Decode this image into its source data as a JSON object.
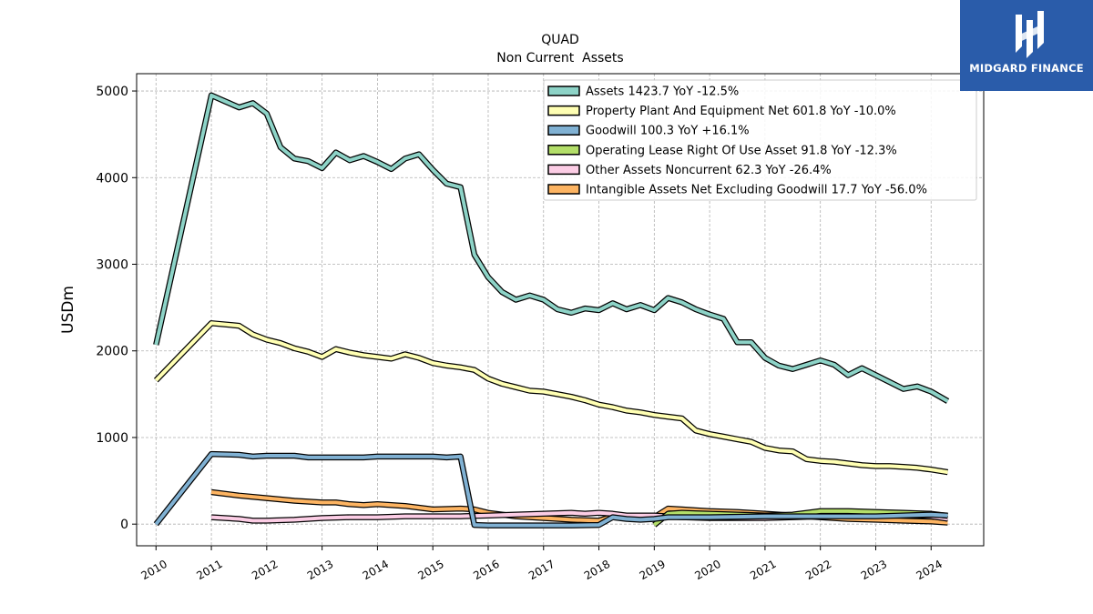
{
  "brand": {
    "name": "MIDGARD FINANCE",
    "color": "#2a5caa"
  },
  "chart_data": {
    "type": "line",
    "title": "QUAD",
    "subtitle": "Non Current  Assets",
    "xlabel": "",
    "ylabel": "USDm",
    "xlim": [
      2009.65,
      2024.95
    ],
    "ylim": [
      -250,
      5200
    ],
    "yticks": [
      0,
      1000,
      2000,
      3000,
      4000,
      5000
    ],
    "xticks": [
      2010,
      2011,
      2012,
      2013,
      2014,
      2015,
      2016,
      2017,
      2018,
      2019,
      2020,
      2021,
      2022,
      2023,
      2024
    ],
    "grid": true,
    "legend_position": "top-right",
    "series": [
      {
        "name": "Assets",
        "legend": "Assets  1423.7 YoY -12.5%",
        "color": "#8dd3c7",
        "points": [
          [
            2010.0,
            2070
          ],
          [
            2011.0,
            4950
          ],
          [
            2011.25,
            4880
          ],
          [
            2011.5,
            4810
          ],
          [
            2011.75,
            4860
          ],
          [
            2012.0,
            4740
          ],
          [
            2012.25,
            4350
          ],
          [
            2012.5,
            4220
          ],
          [
            2012.75,
            4190
          ],
          [
            2013.0,
            4110
          ],
          [
            2013.25,
            4290
          ],
          [
            2013.5,
            4200
          ],
          [
            2013.75,
            4250
          ],
          [
            2014.0,
            4180
          ],
          [
            2014.25,
            4100
          ],
          [
            2014.5,
            4220
          ],
          [
            2014.75,
            4270
          ],
          [
            2015.0,
            4090
          ],
          [
            2015.25,
            3930
          ],
          [
            2015.5,
            3890
          ],
          [
            2015.75,
            3110
          ],
          [
            2016.0,
            2850
          ],
          [
            2016.25,
            2680
          ],
          [
            2016.5,
            2590
          ],
          [
            2016.75,
            2640
          ],
          [
            2017.0,
            2590
          ],
          [
            2017.25,
            2480
          ],
          [
            2017.5,
            2440
          ],
          [
            2017.75,
            2490
          ],
          [
            2018.0,
            2470
          ],
          [
            2018.25,
            2550
          ],
          [
            2018.5,
            2480
          ],
          [
            2018.75,
            2530
          ],
          [
            2019.0,
            2470
          ],
          [
            2019.25,
            2610
          ],
          [
            2019.5,
            2560
          ],
          [
            2019.75,
            2480
          ],
          [
            2020.0,
            2420
          ],
          [
            2020.25,
            2370
          ],
          [
            2020.5,
            2100
          ],
          [
            2020.75,
            2100
          ],
          [
            2021.0,
            1920
          ],
          [
            2021.25,
            1830
          ],
          [
            2021.5,
            1790
          ],
          [
            2021.75,
            1840
          ],
          [
            2022.0,
            1890
          ],
          [
            2022.25,
            1840
          ],
          [
            2022.5,
            1720
          ],
          [
            2022.75,
            1800
          ],
          [
            2023.0,
            1720
          ],
          [
            2023.25,
            1640
          ],
          [
            2023.5,
            1560
          ],
          [
            2023.75,
            1590
          ],
          [
            2024.0,
            1530
          ],
          [
            2024.3,
            1420
          ]
        ]
      },
      {
        "name": "Property Plant And Equipment Net",
        "legend": "Property Plant And Equipment Net  601.8 YoY -10.0%",
        "color": "#ffffb3",
        "points": [
          [
            2010.0,
            1660
          ],
          [
            2011.0,
            2320
          ],
          [
            2011.5,
            2290
          ],
          [
            2011.75,
            2190
          ],
          [
            2012.0,
            2130
          ],
          [
            2012.25,
            2090
          ],
          [
            2012.5,
            2030
          ],
          [
            2012.75,
            1990
          ],
          [
            2013.0,
            1930
          ],
          [
            2013.25,
            2020
          ],
          [
            2013.5,
            1980
          ],
          [
            2013.75,
            1950
          ],
          [
            2014.0,
            1930
          ],
          [
            2014.25,
            1910
          ],
          [
            2014.5,
            1960
          ],
          [
            2014.75,
            1920
          ],
          [
            2015.0,
            1860
          ],
          [
            2015.25,
            1830
          ],
          [
            2015.5,
            1810
          ],
          [
            2015.75,
            1780
          ],
          [
            2016.0,
            1680
          ],
          [
            2016.25,
            1620
          ],
          [
            2016.5,
            1580
          ],
          [
            2016.75,
            1540
          ],
          [
            2017.0,
            1530
          ],
          [
            2017.25,
            1500
          ],
          [
            2017.5,
            1470
          ],
          [
            2017.75,
            1430
          ],
          [
            2018.0,
            1380
          ],
          [
            2018.25,
            1350
          ],
          [
            2018.5,
            1310
          ],
          [
            2018.75,
            1290
          ],
          [
            2019.0,
            1260
          ],
          [
            2019.25,
            1240
          ],
          [
            2019.5,
            1220
          ],
          [
            2019.75,
            1080
          ],
          [
            2020.0,
            1040
          ],
          [
            2020.25,
            1010
          ],
          [
            2020.5,
            980
          ],
          [
            2020.75,
            950
          ],
          [
            2021.0,
            880
          ],
          [
            2021.25,
            850
          ],
          [
            2021.5,
            840
          ],
          [
            2021.75,
            750
          ],
          [
            2022.0,
            730
          ],
          [
            2022.25,
            720
          ],
          [
            2022.5,
            700
          ],
          [
            2022.75,
            680
          ],
          [
            2023.0,
            670
          ],
          [
            2023.25,
            670
          ],
          [
            2023.5,
            660
          ],
          [
            2023.75,
            650
          ],
          [
            2024.0,
            630
          ],
          [
            2024.3,
            600
          ]
        ]
      },
      {
        "name": "Goodwill",
        "legend": "Goodwill  100.3 YoY +16.1%",
        "color": "#80b1d3",
        "points": [
          [
            2010.0,
            0
          ],
          [
            2011.0,
            810
          ],
          [
            2011.5,
            800
          ],
          [
            2011.75,
            780
          ],
          [
            2012.0,
            790
          ],
          [
            2012.5,
            790
          ],
          [
            2012.75,
            770
          ],
          [
            2013.0,
            770
          ],
          [
            2013.5,
            770
          ],
          [
            2013.75,
            770
          ],
          [
            2014.0,
            780
          ],
          [
            2014.5,
            780
          ],
          [
            2014.75,
            780
          ],
          [
            2015.0,
            780
          ],
          [
            2015.25,
            770
          ],
          [
            2015.5,
            780
          ],
          [
            2015.75,
            -10
          ],
          [
            2016.0,
            -15
          ],
          [
            2017.0,
            -15
          ],
          [
            2017.5,
            -15
          ],
          [
            2018.0,
            -10
          ],
          [
            2018.25,
            80
          ],
          [
            2018.5,
            60
          ],
          [
            2018.75,
            50
          ],
          [
            2019.0,
            60
          ],
          [
            2019.25,
            80
          ],
          [
            2019.5,
            80
          ],
          [
            2020.0,
            80
          ],
          [
            2021.0,
            90
          ],
          [
            2022.0,
            90
          ],
          [
            2023.0,
            90
          ],
          [
            2024.0,
            110
          ],
          [
            2024.3,
            100
          ]
        ]
      },
      {
        "name": "Operating Lease Right Of Use Asset",
        "legend": "Operating Lease Right Of Use Asset  91.8 YoY -12.3%",
        "color": "#b3de69",
        "points": [
          [
            2019.0,
            -10
          ],
          [
            2019.25,
            120
          ],
          [
            2019.5,
            130
          ],
          [
            2020.0,
            120
          ],
          [
            2020.5,
            110
          ],
          [
            2021.0,
            100
          ],
          [
            2021.5,
            110
          ],
          [
            2022.0,
            150
          ],
          [
            2022.5,
            150
          ],
          [
            2023.0,
            140
          ],
          [
            2023.5,
            130
          ],
          [
            2024.0,
            120
          ],
          [
            2024.3,
            95
          ]
        ]
      },
      {
        "name": "Other Assets Noncurrent",
        "legend": "Other Assets Noncurrent  62.3 YoY -26.4%",
        "color": "#fccde5",
        "points": [
          [
            2011.0,
            80
          ],
          [
            2011.5,
            60
          ],
          [
            2011.75,
            40
          ],
          [
            2012.0,
            40
          ],
          [
            2012.5,
            50
          ],
          [
            2013.0,
            70
          ],
          [
            2013.5,
            80
          ],
          [
            2014.0,
            80
          ],
          [
            2014.5,
            90
          ],
          [
            2015.0,
            90
          ],
          [
            2015.5,
            90
          ],
          [
            2016.0,
            100
          ],
          [
            2016.5,
            110
          ],
          [
            2017.0,
            120
          ],
          [
            2017.5,
            130
          ],
          [
            2017.75,
            120
          ],
          [
            2018.0,
            130
          ],
          [
            2018.25,
            120
          ],
          [
            2018.5,
            100
          ],
          [
            2019.0,
            100
          ],
          [
            2019.25,
            90
          ],
          [
            2019.5,
            80
          ],
          [
            2020.0,
            70
          ],
          [
            2020.5,
            70
          ],
          [
            2021.0,
            70
          ],
          [
            2021.5,
            80
          ],
          [
            2022.0,
            90
          ],
          [
            2022.5,
            100
          ],
          [
            2023.0,
            100
          ],
          [
            2023.5,
            110
          ],
          [
            2024.0,
            90
          ],
          [
            2024.3,
            62
          ]
        ]
      },
      {
        "name": "Intangible Assets Net Excluding Goodwill",
        "legend": "Intangible Assets Net Excluding Goodwill  17.7 YoY -56.0%",
        "color": "#fdb462",
        "points": [
          [
            2011.0,
            370
          ],
          [
            2011.5,
            330
          ],
          [
            2012.0,
            300
          ],
          [
            2012.5,
            270
          ],
          [
            2013.0,
            250
          ],
          [
            2013.25,
            250
          ],
          [
            2013.5,
            230
          ],
          [
            2013.75,
            220
          ],
          [
            2014.0,
            230
          ],
          [
            2014.5,
            210
          ],
          [
            2015.0,
            170
          ],
          [
            2015.5,
            180
          ],
          [
            2015.75,
            170
          ],
          [
            2016.0,
            130
          ],
          [
            2016.5,
            90
          ],
          [
            2017.0,
            70
          ],
          [
            2017.5,
            50
          ],
          [
            2018.0,
            40
          ],
          [
            2018.25,
            90
          ],
          [
            2018.5,
            90
          ],
          [
            2019.0,
            80
          ],
          [
            2019.25,
            180
          ],
          [
            2019.5,
            170
          ],
          [
            2020.0,
            150
          ],
          [
            2020.5,
            140
          ],
          [
            2021.0,
            120
          ],
          [
            2021.5,
            100
          ],
          [
            2022.0,
            80
          ],
          [
            2022.5,
            60
          ],
          [
            2023.0,
            50
          ],
          [
            2023.5,
            40
          ],
          [
            2024.0,
            30
          ],
          [
            2024.3,
            18
          ]
        ]
      }
    ]
  }
}
